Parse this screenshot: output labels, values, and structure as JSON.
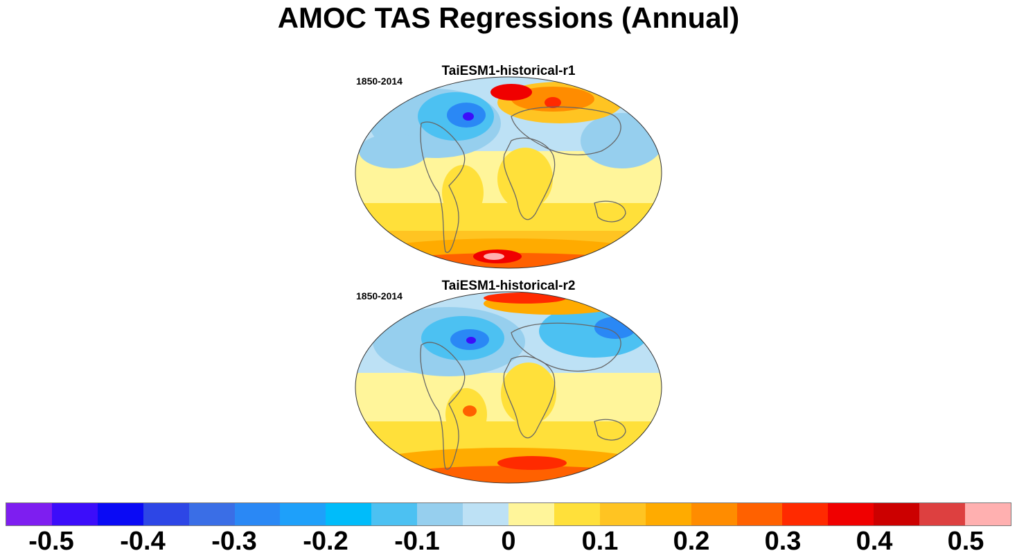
{
  "figure": {
    "title": "AMOC TAS Regressions (Annual)"
  },
  "panels": [
    {
      "title": "TaiESM1-historical-r1",
      "period": "1850-2014"
    },
    {
      "title": "TaiESM1-historical-r2",
      "period": "1850-2014"
    }
  ],
  "colorbar": {
    "colors": [
      "#7e1ef0",
      "#3c0dfa",
      "#0a0af5",
      "#2d46e6",
      "#3a6ee6",
      "#2a88f5",
      "#1ea0fa",
      "#00bcfa",
      "#4cc1f2",
      "#96cfee",
      "#bde1f5",
      "#fff59a",
      "#ffe03a",
      "#ffc422",
      "#ffab00",
      "#ff8c00",
      "#ff6100",
      "#ff2a00",
      "#f00000",
      "#cc0000",
      "#dd4040",
      "#ffb0b0"
    ],
    "tick_labels": [
      "-0.5",
      "-0.4",
      "-0.3",
      "-0.2",
      "-0.1",
      "0",
      "0.1",
      "0.2",
      "0.3",
      "0.4",
      "0.5"
    ],
    "tick_values": [
      -0.5,
      -0.4,
      -0.3,
      -0.2,
      -0.1,
      0,
      0.1,
      0.2,
      0.3,
      0.4,
      0.5
    ],
    "range": [
      -0.55,
      0.55
    ]
  }
}
